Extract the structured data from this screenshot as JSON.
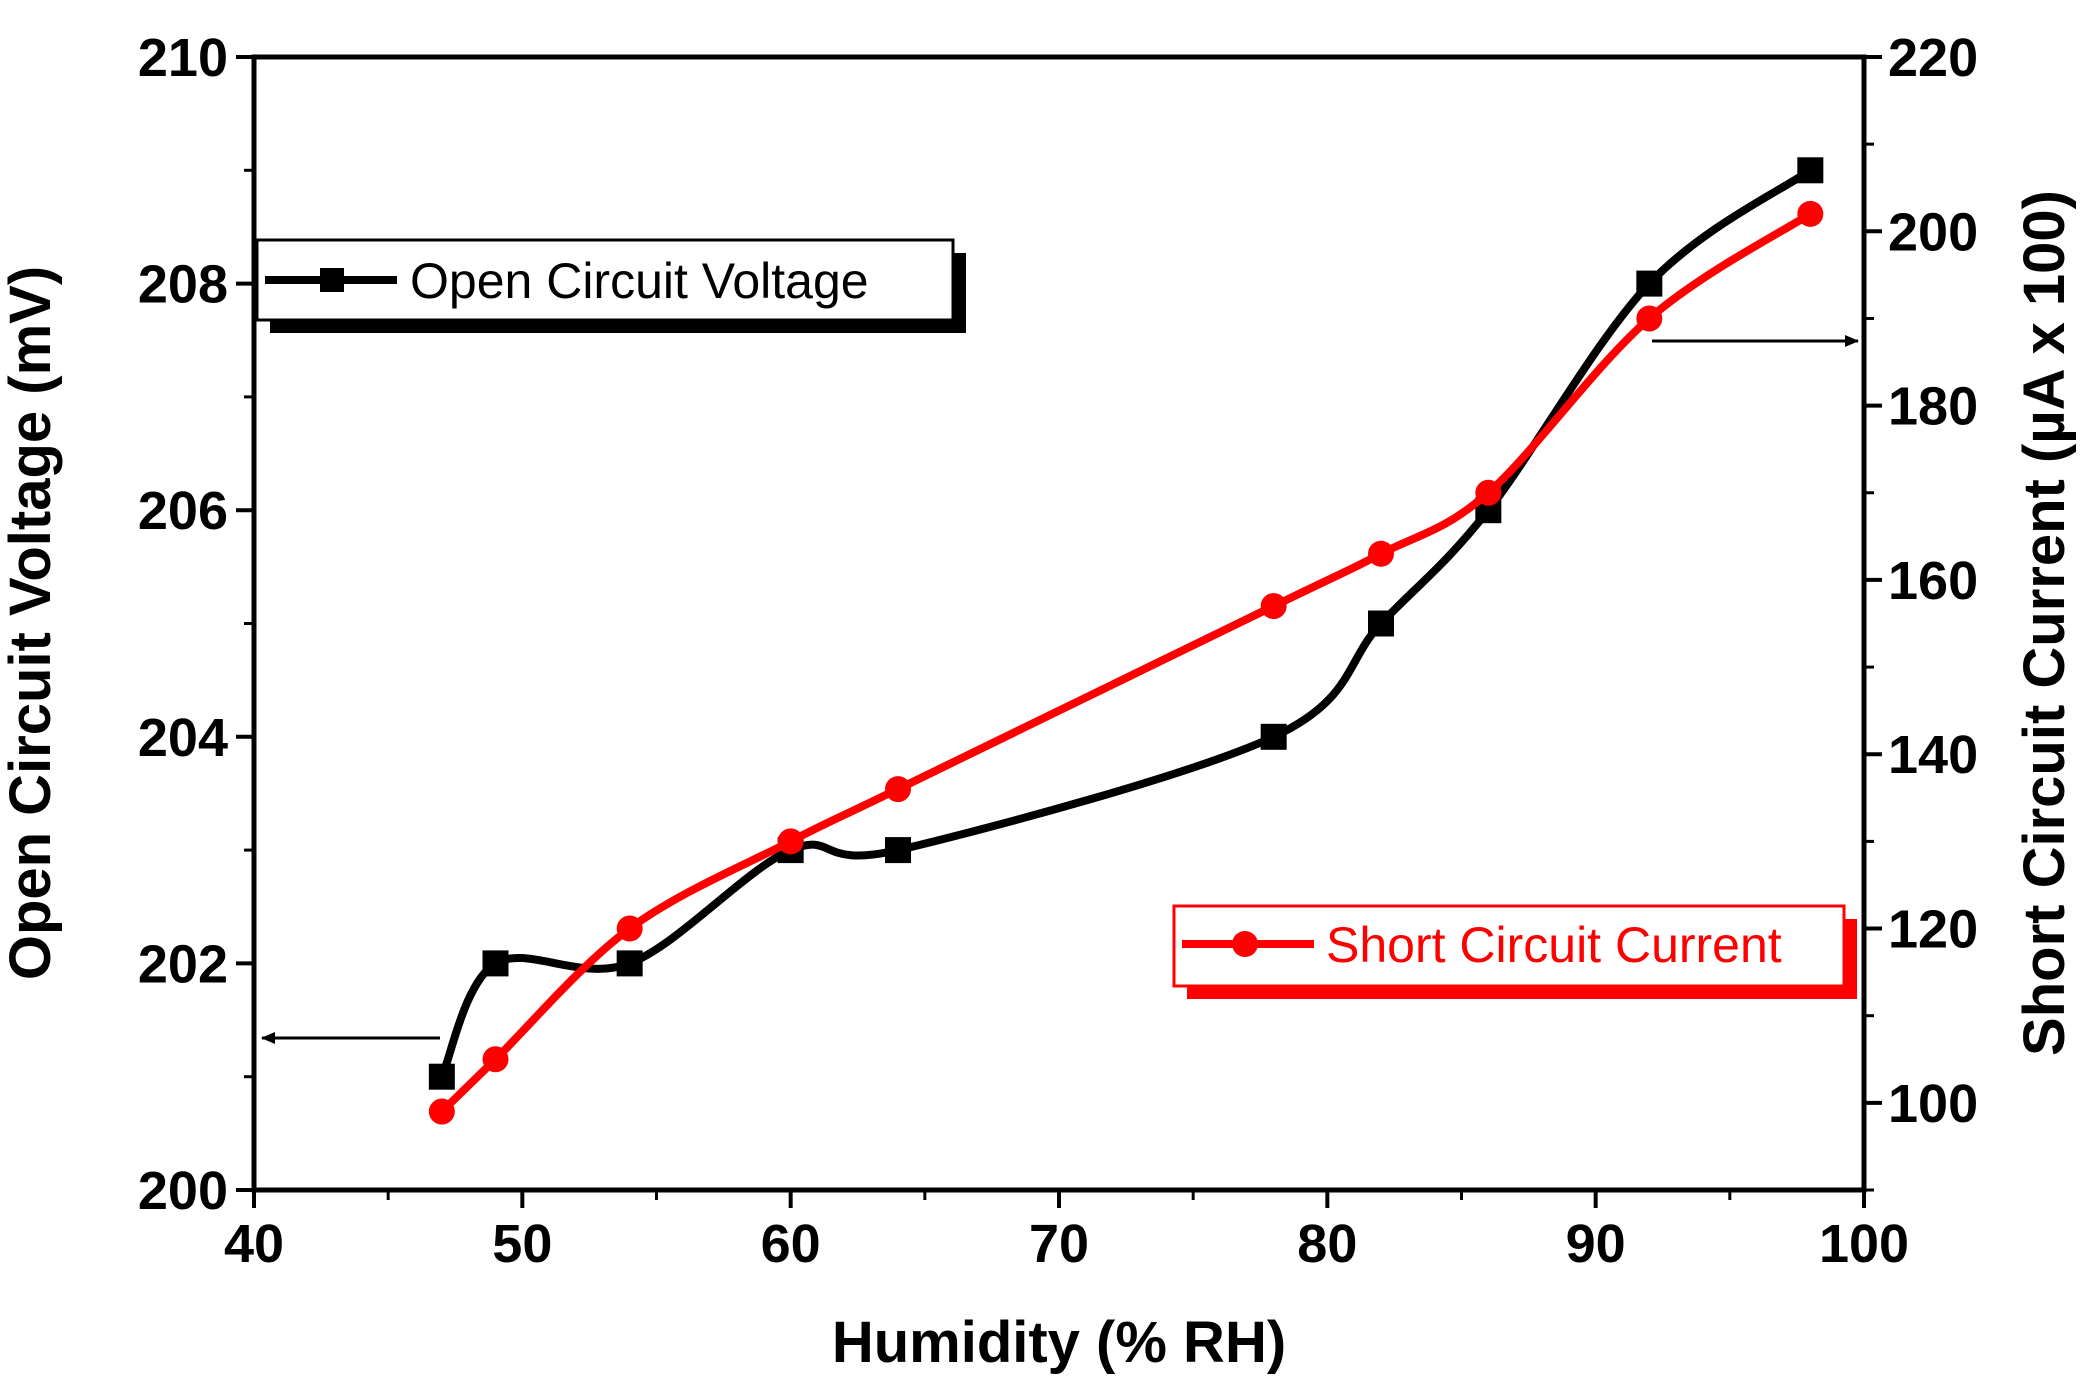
{
  "chart_data": {
    "type": "line",
    "title": "",
    "xlabel": "Humidity (% RH)",
    "ylabel_left": "Open Circuit Voltage (mV)",
    "ylabel_right": "Short Circuit Current (µA x 100)",
    "xlim": [
      40,
      100
    ],
    "ylim_left": [
      200,
      210
    ],
    "ylim_right": [
      90,
      220
    ],
    "x_ticks": [
      "40",
      "50",
      "60",
      "70",
      "80",
      "90",
      "100"
    ],
    "y_left_ticks": [
      "200",
      "202",
      "204",
      "206",
      "208",
      "210"
    ],
    "y_right_ticks": [
      "100",
      "120",
      "140",
      "160",
      "180",
      "200",
      "220"
    ],
    "grid": false,
    "series": [
      {
        "name": "Open Circuit Voltage",
        "axis": "left",
        "color": "#000000",
        "marker": "square",
        "x": [
          47,
          49,
          54,
          60,
          64,
          78,
          82,
          86,
          92,
          98
        ],
        "values": [
          201,
          202,
          202,
          203,
          203,
          204,
          205,
          206,
          208,
          209
        ]
      },
      {
        "name": "Short Circuit Current",
        "axis": "right",
        "color": "#ff0000",
        "marker": "circle",
        "x": [
          47,
          49,
          54,
          60,
          64,
          78,
          82,
          86,
          92,
          98
        ],
        "values": [
          99,
          105,
          120,
          130,
          136,
          157,
          163,
          170,
          190,
          202
        ]
      }
    ]
  }
}
